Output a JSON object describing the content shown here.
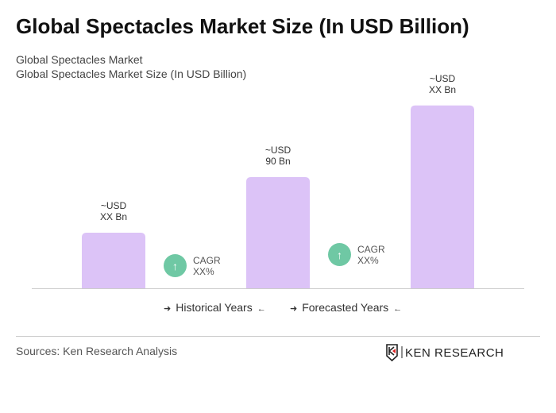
{
  "title": "Global Spectacles Market Size (In USD Billion)",
  "subtitle1": "Global Spectacles Market",
  "subtitle2": "Global Spectacles Market Size (In USD Billion)",
  "chart_data": {
    "type": "bar",
    "categories": [
      "",
      "",
      ""
    ],
    "values": [
      45,
      90,
      148
    ],
    "data_labels": [
      [
        "~USD",
        "XX Bn"
      ],
      [
        "~USD",
        "90 Bn"
      ],
      [
        "~USD",
        "XX Bn"
      ]
    ],
    "bar_color": "#dcc3f7",
    "cagr": [
      {
        "label": "CAGR",
        "value": "XX%"
      },
      {
        "label": "CAGR",
        "value": "XX%"
      }
    ],
    "cagr_color": "#6fc8a4",
    "legend": [
      "Historical Years",
      "Forecasted Years"
    ]
  },
  "sources": "Sources: Ken Research Analysis",
  "logo_text": "KEN RESEARCH"
}
